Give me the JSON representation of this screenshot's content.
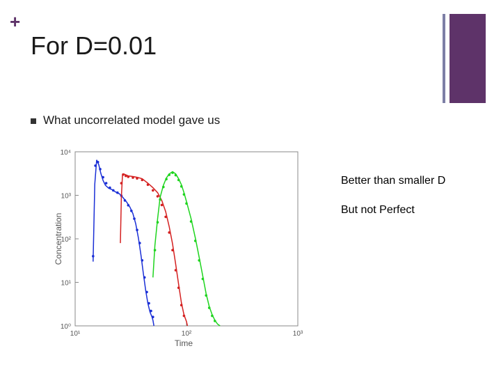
{
  "slide": {
    "plus_glyph": "+",
    "title": "For D=0.01",
    "bullet": "What uncorrelated model gave us",
    "notes": [
      "Better than smaller D",
      "But not Perfect"
    ],
    "colors": {
      "accent": "#5e3369",
      "deco_gray": "#7d7fa6"
    }
  },
  "chart_data": {
    "type": "line",
    "xlabel": "Time",
    "ylabel": "Concentration",
    "xscale": "log",
    "yscale": "log",
    "xlim": [
      10,
      1000
    ],
    "ylim": [
      1,
      10000
    ],
    "x_ticks": [
      {
        "v": 10,
        "t": "10¹"
      },
      {
        "v": 100,
        "t": "10²"
      },
      {
        "v": 1000,
        "t": "10³"
      }
    ],
    "y_ticks": [
      {
        "v": 1,
        "t": "10⁰"
      },
      {
        "v": 10,
        "t": "10¹"
      },
      {
        "v": 100,
        "t": "10²"
      },
      {
        "v": 1000,
        "t": "10³"
      },
      {
        "v": 10000,
        "t": "10⁴"
      }
    ],
    "grid": false,
    "series": [
      {
        "color": "#1a2fd6",
        "x": [
          14.5,
          15.0,
          15.6,
          16.3,
          17.0,
          17.8,
          18.7,
          20.0,
          21.5,
          23.0,
          25.0,
          27.0,
          29.0,
          31.0,
          33.0,
          35.0,
          37.0,
          39.0,
          41.0,
          43.0,
          45.0,
          47.0,
          49.0,
          50.0,
          51.0
        ],
        "y": [
          30,
          1800,
          6500,
          5000,
          3200,
          2200,
          1700,
          1450,
          1350,
          1200,
          1080,
          880,
          700,
          540,
          380,
          220,
          105,
          42,
          16,
          6.5,
          3.3,
          2.1,
          1.6,
          1.35,
          1.0
        ],
        "points_x": [
          14.5,
          15.2,
          16.0,
          16.8,
          17.8,
          19.0,
          20.5,
          22.0,
          24.0,
          26.0,
          28.0,
          30.0,
          32.0,
          34.0,
          36.0,
          38.0,
          40.0,
          42.0,
          44.0,
          46.0,
          48.0,
          50.0
        ],
        "points_y": [
          40,
          4800,
          5800,
          4000,
          2600,
          1900,
          1500,
          1300,
          1150,
          980,
          760,
          590,
          440,
          290,
          160,
          80,
          32,
          13,
          6,
          3.3,
          2.2,
          1.6
        ]
      },
      {
        "color": "#d42020",
        "x": [
          25.5,
          26.0,
          26.6,
          27.3,
          28.5,
          30.0,
          33.0,
          36.0,
          40.0,
          45.0,
          50.0,
          55.0,
          60.0,
          65.0,
          70.0,
          75.0,
          80.0,
          85.0,
          90.0,
          95.0,
          100.0,
          102.0
        ],
        "y": [
          80,
          900,
          2900,
          3100,
          2950,
          2800,
          2700,
          2600,
          2400,
          1900,
          1500,
          1150,
          760,
          420,
          190,
          76,
          26,
          9,
          3.4,
          1.8,
          1.25,
          1.0
        ],
        "points_x": [
          26.0,
          27.0,
          28.5,
          30.0,
          33.0,
          36.0,
          40.0,
          45.0,
          50.0,
          55.0,
          60.0,
          65.0,
          70.0,
          75.0,
          80.0,
          85.0,
          90.0,
          95.0
        ],
        "points_y": [
          1900,
          3000,
          2800,
          2650,
          2550,
          2450,
          2250,
          1750,
          1300,
          950,
          600,
          320,
          140,
          55,
          19,
          7.5,
          3.0,
          1.7
        ]
      },
      {
        "color": "#1ed41e",
        "x": [
          50.0,
          52.0,
          55.0,
          58.0,
          62.0,
          66.0,
          70.0,
          75.0,
          80.0,
          85.0,
          90.0,
          95.0,
          100.0,
          110.0,
          120.0,
          130.0,
          140.0,
          150.0,
          160.0,
          170.0,
          180.0,
          190.0,
          200.0
        ],
        "y": [
          13,
          70,
          290,
          900,
          1700,
          2500,
          3100,
          3500,
          3100,
          2400,
          1750,
          1150,
          720,
          290,
          105,
          38,
          14,
          5.5,
          2.8,
          1.8,
          1.35,
          1.1,
          1.0
        ],
        "points_x": [
          52.0,
          55.0,
          58.0,
          62.0,
          66.0,
          70.0,
          75.0,
          80.0,
          85.0,
          90.0,
          95.0,
          100.0,
          110.0,
          120.0,
          130.0,
          140.0,
          150.0,
          160.0,
          170.0,
          180.0
        ],
        "points_y": [
          55,
          240,
          800,
          1550,
          2350,
          2950,
          3300,
          2900,
          2250,
          1600,
          1050,
          650,
          250,
          90,
          32,
          12,
          5.0,
          2.6,
          1.7,
          1.3
        ]
      }
    ]
  }
}
